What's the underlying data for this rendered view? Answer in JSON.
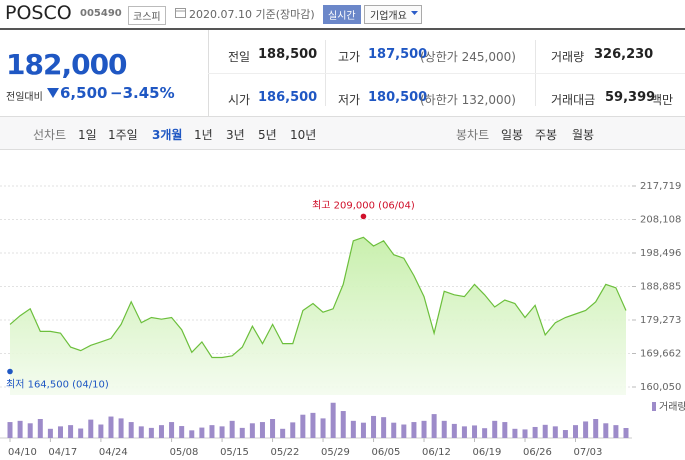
{
  "header": {
    "name": "POSCO",
    "code": "005490",
    "market": "코스피",
    "date": "2020.07.10 기준(장마감)",
    "realtime": "실시간",
    "company_info": "기업개요"
  },
  "quote": {
    "price": "182,000",
    "change_label": "전일대비",
    "change": "6,500",
    "change_pct": "−3.45%"
  },
  "stats": [
    {
      "label": "전일",
      "value": "188,500"
    },
    {
      "label": "고가",
      "value": "187,500",
      "note": "(상한가 245,000)"
    },
    {
      "label": "거래량",
      "value": "326,230"
    },
    {
      "label": "시가",
      "value": "186,500"
    },
    {
      "label": "저가",
      "value": "180,500",
      "note": "(하한가 132,000)"
    },
    {
      "label": "거래대금",
      "value": "59,399",
      "unit": "백만"
    }
  ],
  "tabs": {
    "line_label": "선차트",
    "line_periods": [
      "1일",
      "1주일",
      "3개월",
      "1년",
      "3년",
      "5년",
      "10년"
    ],
    "selected": 2,
    "candle_label": "봉차트",
    "candle_periods": [
      "일봉",
      "주봉",
      "월봉"
    ]
  },
  "chart_data": [
    {
      "type": "area",
      "color": "#6cbf3c",
      "categories": [
        "04/10",
        null,
        null,
        null,
        "04/17",
        null,
        null,
        null,
        null,
        "04/24",
        null,
        null,
        null,
        null,
        null,
        null,
        "05/08",
        null,
        null,
        null,
        null,
        "05/15",
        null,
        null,
        null,
        null,
        "05/22",
        null,
        null,
        null,
        null,
        "05/29",
        null,
        null,
        null,
        null,
        "06/05",
        null,
        null,
        null,
        null,
        "06/12",
        null,
        null,
        null,
        null,
        "06/19",
        null,
        null,
        null,
        null,
        "06/26",
        null,
        null,
        null,
        null,
        "07/03",
        null,
        null,
        null,
        null,
        null
      ],
      "values": [
        178000,
        180500,
        182500,
        176000,
        176000,
        175500,
        171500,
        170500,
        172000,
        173000,
        174000,
        178000,
        184500,
        178500,
        180000,
        179500,
        180000,
        176500,
        170000,
        173000,
        168500,
        168500,
        169000,
        171500,
        177500,
        172500,
        178000,
        172500,
        172500,
        182000,
        184000,
        181500,
        182500,
        189500,
        202000,
        203000,
        200500,
        202000,
        198000,
        197000,
        192000,
        186000,
        175500,
        187500,
        186500,
        186000,
        189500,
        186500,
        183000,
        185000,
        184000,
        180000,
        183500,
        175000,
        178500,
        180000,
        181000,
        182000,
        184500,
        189500,
        188500,
        182000
      ],
      "ylim": [
        160050,
        217719
      ],
      "yticks": [
        {
          "value": 160050,
          "label": "160,050"
        },
        {
          "value": 169662,
          "label": "169,662"
        },
        {
          "value": 179273,
          "label": "179,273"
        },
        {
          "value": 188885,
          "label": "188,885"
        },
        {
          "value": 198496,
          "label": "198,496"
        },
        {
          "value": 208108,
          "label": "208,108"
        },
        {
          "value": 217719,
          "label": "217,719"
        }
      ],
      "grid": true,
      "annotations": [
        {
          "text": "최고 209,000 (06/04)",
          "value": 209000,
          "date": "06/04",
          "color": "#d0112b"
        },
        {
          "text": "최저 164,500 (04/10)",
          "value": 164500,
          "date": "04/10",
          "color": "#1f57c3"
        }
      ]
    },
    {
      "type": "bar",
      "legend": "upper right",
      "series": [
        {
          "name": "거래량",
          "color": "#9d8bc9",
          "values": [
            520000,
            560000,
            480000,
            620000,
            300000,
            380000,
            420000,
            310000,
            600000,
            440000,
            700000,
            640000,
            520000,
            380000,
            330000,
            420000,
            520000,
            390000,
            250000,
            340000,
            420000,
            380000,
            560000,
            330000,
            480000,
            520000,
            620000,
            300000,
            510000,
            760000,
            820000,
            640000,
            1150000,
            880000,
            560000,
            500000,
            720000,
            680000,
            500000,
            440000,
            520000,
            560000,
            780000,
            560000,
            460000,
            380000,
            410000,
            320000,
            560000,
            520000,
            300000,
            280000,
            360000,
            430000,
            380000,
            260000,
            420000,
            540000,
            620000,
            480000,
            420000,
            326230
          ]
        }
      ],
      "ylim": [
        0,
        1240000
      ]
    }
  ]
}
